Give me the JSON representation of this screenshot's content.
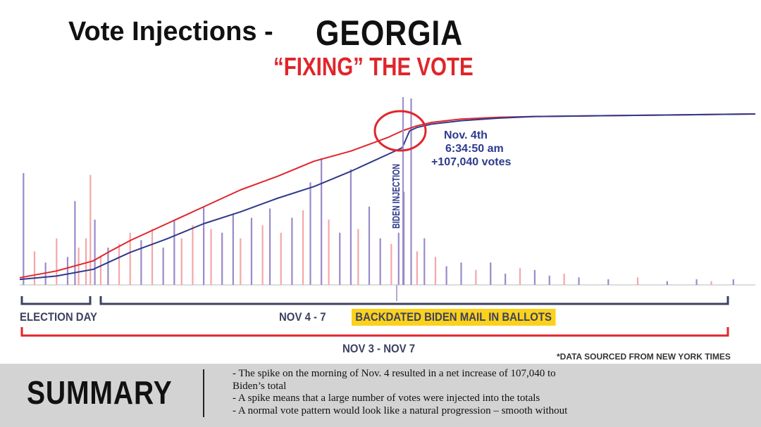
{
  "header": {
    "title": "Vote Injections -",
    "state": "GEORGIA",
    "subtitle": "“FIXING” THE VOTE"
  },
  "colors": {
    "trump_line": "#e0252b",
    "biden_line": "#2e3a8a",
    "trump_bars": "#f4a7a9",
    "biden_bars": "#9b8ac9",
    "highlight": "#fbd11c",
    "bracket_navy": "#3d4260",
    "bracket_red": "#e0252b",
    "summary_bg": "#d3d3d3"
  },
  "chart_data": {
    "type": "line",
    "title": "",
    "xlabel": "",
    "ylabel": "",
    "x_range": [
      0,
      100
    ],
    "y_range": [
      0,
      100
    ],
    "series": [
      {
        "color": "red",
        "x": [
          0,
          5,
          10,
          12,
          15,
          20,
          25,
          30,
          35,
          40,
          45,
          50,
          52,
          54,
          56,
          60,
          65,
          70,
          80,
          90,
          100
        ],
        "y": [
          3,
          7,
          13,
          18,
          25,
          35,
          45,
          55,
          63,
          72,
          78,
          86,
          90,
          93,
          95,
          97,
          98,
          98.5,
          99,
          99.5,
          100
        ]
      },
      {
        "color": "blue",
        "x": [
          0,
          5,
          10,
          12,
          15,
          20,
          25,
          30,
          35,
          40,
          45,
          48,
          50,
          52,
          53,
          54,
          56,
          60,
          65,
          70,
          80,
          90,
          100
        ],
        "y": [
          2,
          4,
          8,
          12,
          18,
          26,
          35,
          42,
          50,
          57,
          66,
          72,
          76,
          80,
          90,
          92,
          94,
          96,
          97.5,
          98.5,
          99,
          99.5,
          100
        ]
      }
    ],
    "spike_bars": [
      {
        "x": 0.5,
        "v": 60,
        "c": "b"
      },
      {
        "x": 2,
        "v": 18,
        "c": "r"
      },
      {
        "x": 3.5,
        "v": 12,
        "c": "b"
      },
      {
        "x": 5,
        "v": 25,
        "c": "r"
      },
      {
        "x": 6.5,
        "v": 15,
        "c": "b"
      },
      {
        "x": 7.5,
        "v": 45,
        "c": "b"
      },
      {
        "x": 8,
        "v": 20,
        "c": "r"
      },
      {
        "x": 9,
        "v": 25,
        "c": "r"
      },
      {
        "x": 9.6,
        "v": 59,
        "c": "r"
      },
      {
        "x": 10.2,
        "v": 35,
        "c": "b"
      },
      {
        "x": 11,
        "v": 15,
        "c": "r"
      },
      {
        "x": 12,
        "v": 20,
        "c": "b"
      },
      {
        "x": 13.5,
        "v": 22,
        "c": "r"
      },
      {
        "x": 15,
        "v": 28,
        "c": "r"
      },
      {
        "x": 16.5,
        "v": 24,
        "c": "b"
      },
      {
        "x": 18,
        "v": 30,
        "c": "r"
      },
      {
        "x": 19.5,
        "v": 20,
        "c": "b"
      },
      {
        "x": 21,
        "v": 35,
        "c": "b"
      },
      {
        "x": 22,
        "v": 25,
        "c": "r"
      },
      {
        "x": 23.5,
        "v": 32,
        "c": "r"
      },
      {
        "x": 25,
        "v": 42,
        "c": "b"
      },
      {
        "x": 26,
        "v": 30,
        "c": "r"
      },
      {
        "x": 27.5,
        "v": 28,
        "c": "b"
      },
      {
        "x": 29,
        "v": 38,
        "c": "b"
      },
      {
        "x": 30,
        "v": 25,
        "c": "r"
      },
      {
        "x": 31.5,
        "v": 36,
        "c": "b"
      },
      {
        "x": 33,
        "v": 32,
        "c": "r"
      },
      {
        "x": 34,
        "v": 41,
        "c": "b"
      },
      {
        "x": 35.5,
        "v": 28,
        "c": "r"
      },
      {
        "x": 37,
        "v": 36,
        "c": "b"
      },
      {
        "x": 38.5,
        "v": 40,
        "c": "r"
      },
      {
        "x": 39.5,
        "v": 55,
        "c": "b"
      },
      {
        "x": 41,
        "v": 68,
        "c": "b"
      },
      {
        "x": 42,
        "v": 35,
        "c": "r"
      },
      {
        "x": 43.5,
        "v": 28,
        "c": "b"
      },
      {
        "x": 45,
        "v": 62,
        "c": "b"
      },
      {
        "x": 46,
        "v": 30,
        "c": "r"
      },
      {
        "x": 47.5,
        "v": 42,
        "c": "b"
      },
      {
        "x": 49,
        "v": 25,
        "c": "b"
      },
      {
        "x": 50.5,
        "v": 22,
        "c": "r"
      },
      {
        "x": 51.5,
        "v": 28,
        "c": "b"
      },
      {
        "x": 52.2,
        "v": 50,
        "c": "b"
      },
      {
        "x": 53.2,
        "v": 100,
        "c": "b"
      },
      {
        "x": 54,
        "v": 18,
        "c": "r"
      },
      {
        "x": 55,
        "v": 25,
        "c": "b"
      },
      {
        "x": 56.5,
        "v": 15,
        "c": "r"
      },
      {
        "x": 58,
        "v": 10,
        "c": "b"
      },
      {
        "x": 60,
        "v": 12,
        "c": "b"
      },
      {
        "x": 62,
        "v": 8,
        "c": "r"
      },
      {
        "x": 64,
        "v": 12,
        "c": "b"
      },
      {
        "x": 66,
        "v": 6,
        "c": "b"
      },
      {
        "x": 68,
        "v": 9,
        "c": "r"
      },
      {
        "x": 70,
        "v": 8,
        "c": "b"
      },
      {
        "x": 72,
        "v": 5,
        "c": "b"
      },
      {
        "x": 74,
        "v": 6,
        "c": "r"
      },
      {
        "x": 76,
        "v": 4,
        "c": "b"
      },
      {
        "x": 80,
        "v": 3,
        "c": "b"
      },
      {
        "x": 84,
        "v": 4,
        "c": "r"
      },
      {
        "x": 88,
        "v": 2,
        "c": "b"
      },
      {
        "x": 92,
        "v": 3,
        "c": "b"
      },
      {
        "x": 94,
        "v": 2,
        "c": "r"
      },
      {
        "x": 97,
        "v": 3,
        "c": "b"
      }
    ],
    "annotations": {
      "vertical_label": "BIDEN INJECTION",
      "callout_lines": [
        "Nov. 4th",
        "6:34:50 am",
        "+107,040 votes"
      ]
    }
  },
  "timeline": {
    "election_day": "ELECTION DAY",
    "nov4_7": "NOV 4 - 7",
    "backdated": "BACKDATED BIDEN MAIL IN BALLOTS",
    "nov3_7": "NOV 3 - NOV 7",
    "source_note": "*DATA SOURCED FROM NEW YORK TIMES"
  },
  "summary": {
    "heading": "SUMMARY",
    "lines": [
      "- The spike on the morning of Nov. 4 resulted in a net increase of 107,040 to",
      "Biden’s total",
      "- A spike means that a large number of votes were injected into the totals",
      "- A normal vote pattern would look like a natural progression – smooth without"
    ]
  }
}
